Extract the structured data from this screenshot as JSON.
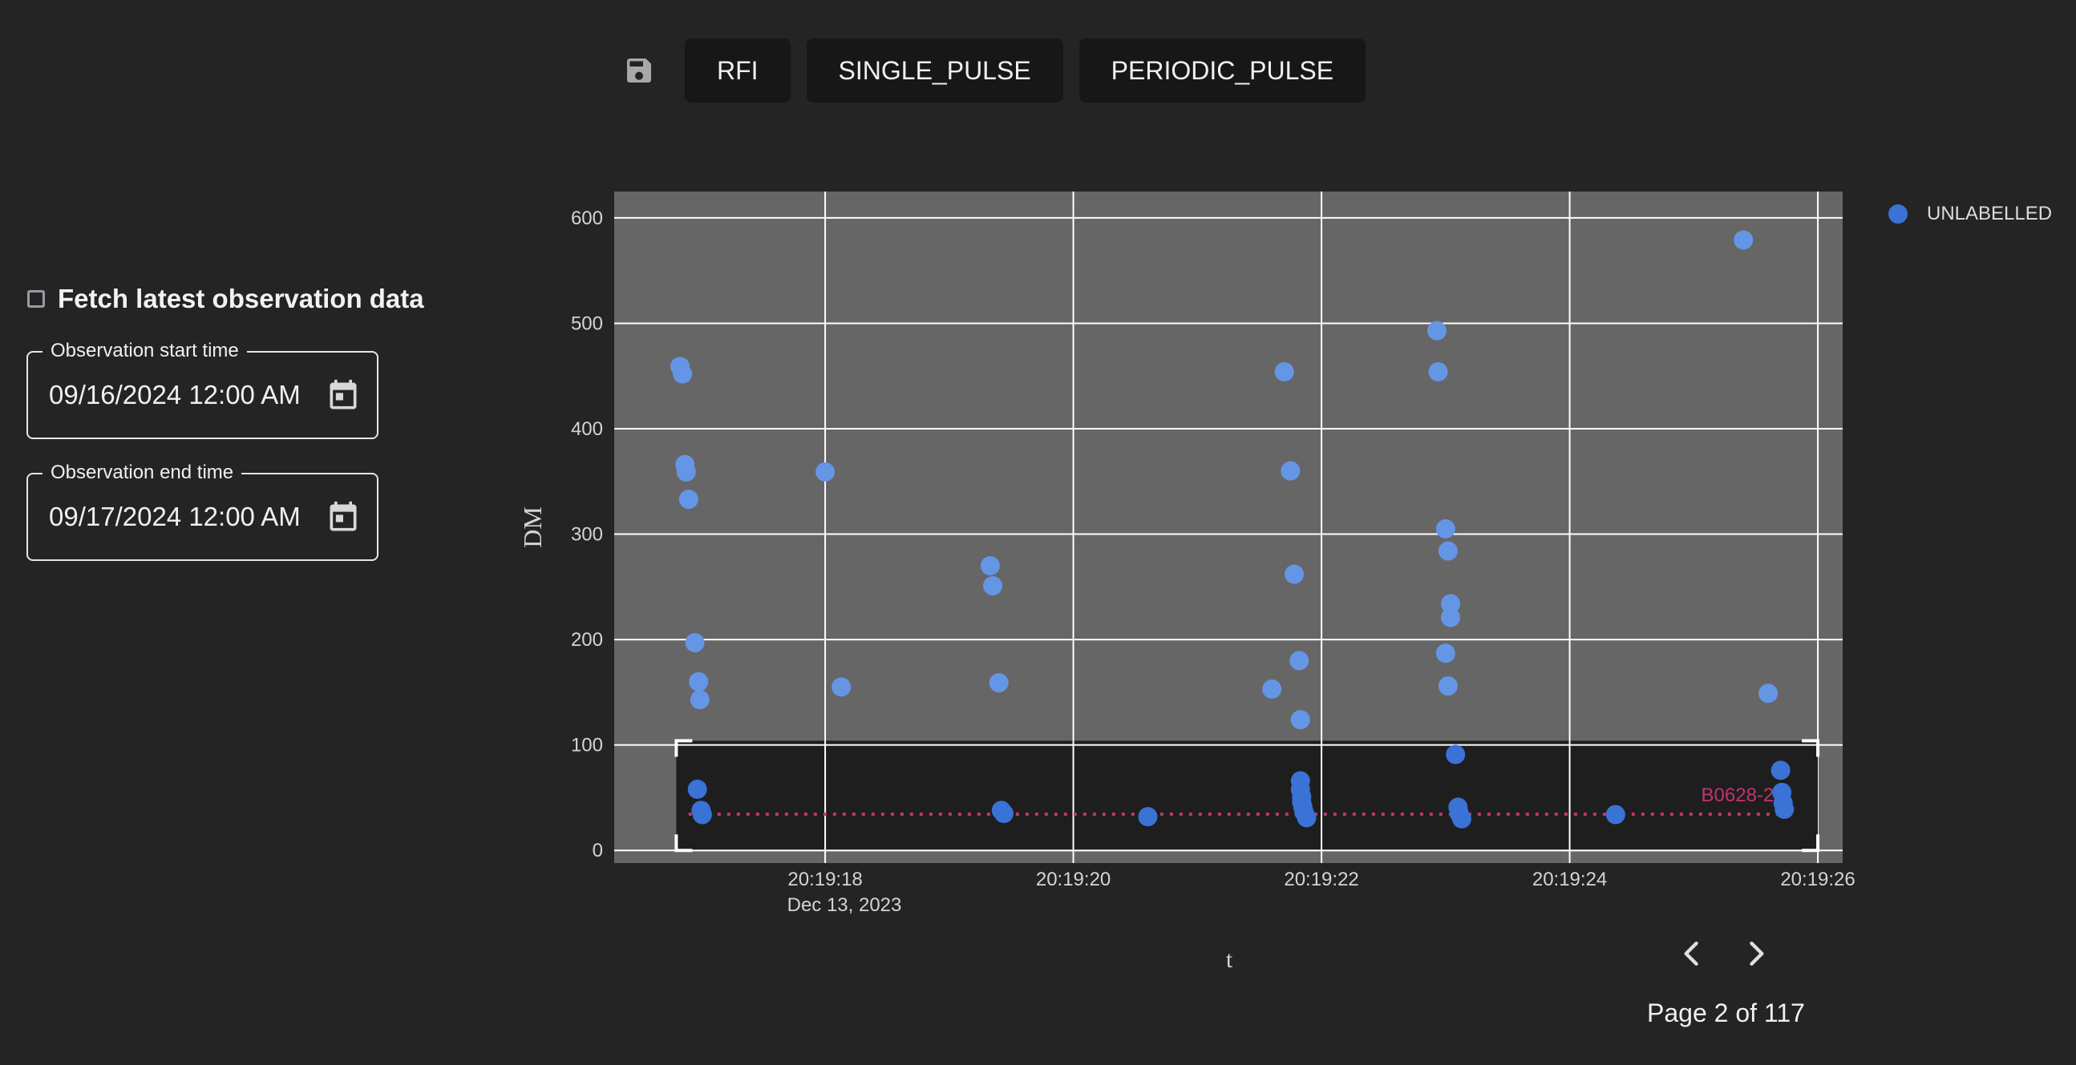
{
  "toolbar": {
    "buttons": [
      {
        "label": "RFI"
      },
      {
        "label": "SINGLE_PULSE"
      },
      {
        "label": "PERIODIC_PULSE"
      }
    ]
  },
  "sidebar": {
    "fetch_label": "Fetch latest observation data",
    "fetch_checked": false,
    "start": {
      "label": "Observation start time",
      "value": "09/16/2024 12:00 AM"
    },
    "end": {
      "label": "Observation end time",
      "value": "09/17/2024 12:00 AM"
    }
  },
  "colors": {
    "background": "#242424",
    "plot_bg": "#666666",
    "point": "#6596e6",
    "point_selected": "#3a72d6",
    "dm_line": "#c2336e"
  },
  "chart_data": {
    "type": "scatter",
    "xlabel": "t",
    "ylabel": "DM",
    "x_date": "Dec 13, 2023",
    "x_ticks": [
      "20:19:18",
      "20:19:20",
      "20:19:22",
      "20:19:24",
      "20:19:26"
    ],
    "y_ticks": [
      0,
      100,
      200,
      300,
      400,
      500,
      600
    ],
    "xlim": [
      "20:19:16.3",
      "20:19:26.2"
    ],
    "ylim": [
      -12,
      625
    ],
    "grid": true,
    "legend_position": "top-right",
    "series": [
      {
        "name": "UNLABELLED",
        "points": [
          [
            "20:19:16.83",
            459
          ],
          [
            "20:19:16.85",
            452
          ],
          [
            "20:19:16.87",
            366
          ],
          [
            "20:19:16.88",
            359
          ],
          [
            "20:19:16.90",
            333
          ],
          [
            "20:19:16.95",
            197
          ],
          [
            "20:19:16.98",
            160
          ],
          [
            "20:19:16.99",
            143
          ],
          [
            "20:19:18.00",
            359
          ],
          [
            "20:19:18.13",
            155
          ],
          [
            "20:19:19.33",
            270
          ],
          [
            "20:19:19.35",
            251
          ],
          [
            "20:19:19.40",
            159
          ],
          [
            "20:19:21.70",
            454
          ],
          [
            "20:19:21.75",
            360
          ],
          [
            "20:19:21.78",
            262
          ],
          [
            "20:19:21.82",
            180
          ],
          [
            "20:19:21.83",
            124
          ],
          [
            "20:19:21.60",
            153
          ],
          [
            "20:19:22.93",
            493
          ],
          [
            "20:19:22.94",
            454
          ],
          [
            "20:19:23.00",
            305
          ],
          [
            "20:19:23.02",
            284
          ],
          [
            "20:19:23.04",
            234
          ],
          [
            "20:19:23.04",
            221
          ],
          [
            "20:19:23.00",
            187
          ],
          [
            "20:19:23.02",
            156
          ],
          [
            "20:19:25.40",
            579
          ],
          [
            "20:19:25.60",
            149
          ],
          [
            "20:19:16.97",
            58
          ],
          [
            "20:19:17.00",
            38
          ],
          [
            "20:19:17.01",
            34
          ],
          [
            "20:19:19.42",
            38
          ],
          [
            "20:19:19.44",
            35
          ],
          [
            "20:19:20.60",
            32
          ],
          [
            "20:19:21.83",
            66
          ],
          [
            "20:19:21.83",
            58
          ],
          [
            "20:19:21.84",
            51
          ],
          [
            "20:19:21.84",
            46
          ],
          [
            "20:19:21.85",
            41
          ],
          [
            "20:19:21.86",
            36
          ],
          [
            "20:19:21.88",
            31
          ],
          [
            "20:19:23.08",
            91
          ],
          [
            "20:19:23.10",
            41
          ],
          [
            "20:19:23.11",
            35
          ],
          [
            "20:19:23.13",
            30
          ],
          [
            "20:19:24.37",
            34
          ],
          [
            "20:19:25.70",
            76
          ],
          [
            "20:19:25.71",
            55
          ],
          [
            "20:19:25.72",
            45
          ],
          [
            "20:19:25.73",
            39
          ]
        ]
      }
    ],
    "selection_box": {
      "x0": "20:19:16.8",
      "x1": "20:19:26.0",
      "y0": 0,
      "y1": 104
    },
    "reference_line": {
      "label": "B0628-28",
      "dm": 34.4,
      "x0": "20:19:16.9",
      "x1": "20:19:25.7"
    }
  },
  "pagination": {
    "text": "Page 2 of 117",
    "page": 2,
    "total": 117
  }
}
